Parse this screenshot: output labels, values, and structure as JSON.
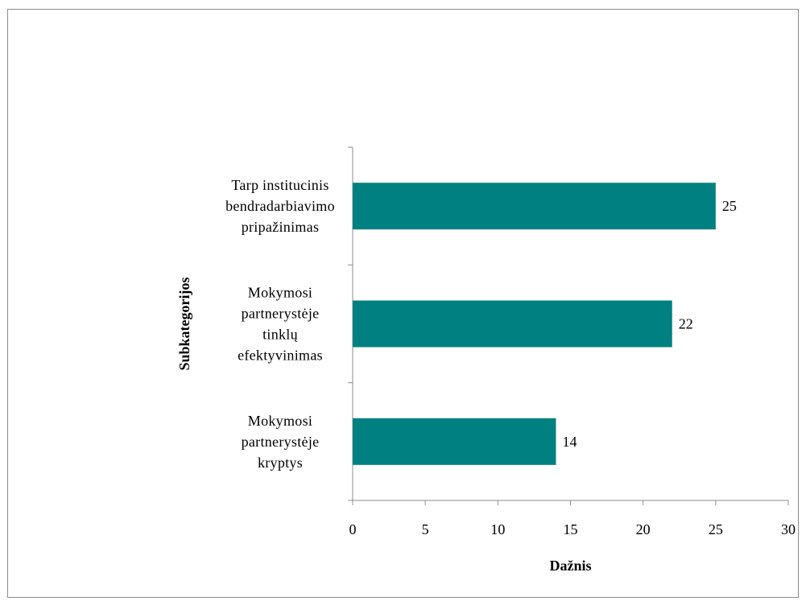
{
  "chart_data": {
    "type": "bar",
    "orientation": "horizontal",
    "categories": [
      [
        "Tarp institucinis",
        "bendradarbiavimo",
        "pripažinimas"
      ],
      [
        "Mokymosi",
        "partnerystėje",
        "tinklų",
        "efektyvinimas"
      ],
      [
        "Mokymosi",
        "partnerystėje",
        "kryptys"
      ]
    ],
    "values": [
      25,
      22,
      14
    ],
    "data_labels": [
      "25",
      "22",
      "14"
    ],
    "xlabel": "Dažnis",
    "ylabel": "Subkategorijos",
    "xlim": [
      0,
      30
    ],
    "xticks": [
      0,
      5,
      10,
      15,
      20,
      25,
      30
    ],
    "grid": false,
    "legend": "none",
    "bar_color": "#008080"
  }
}
